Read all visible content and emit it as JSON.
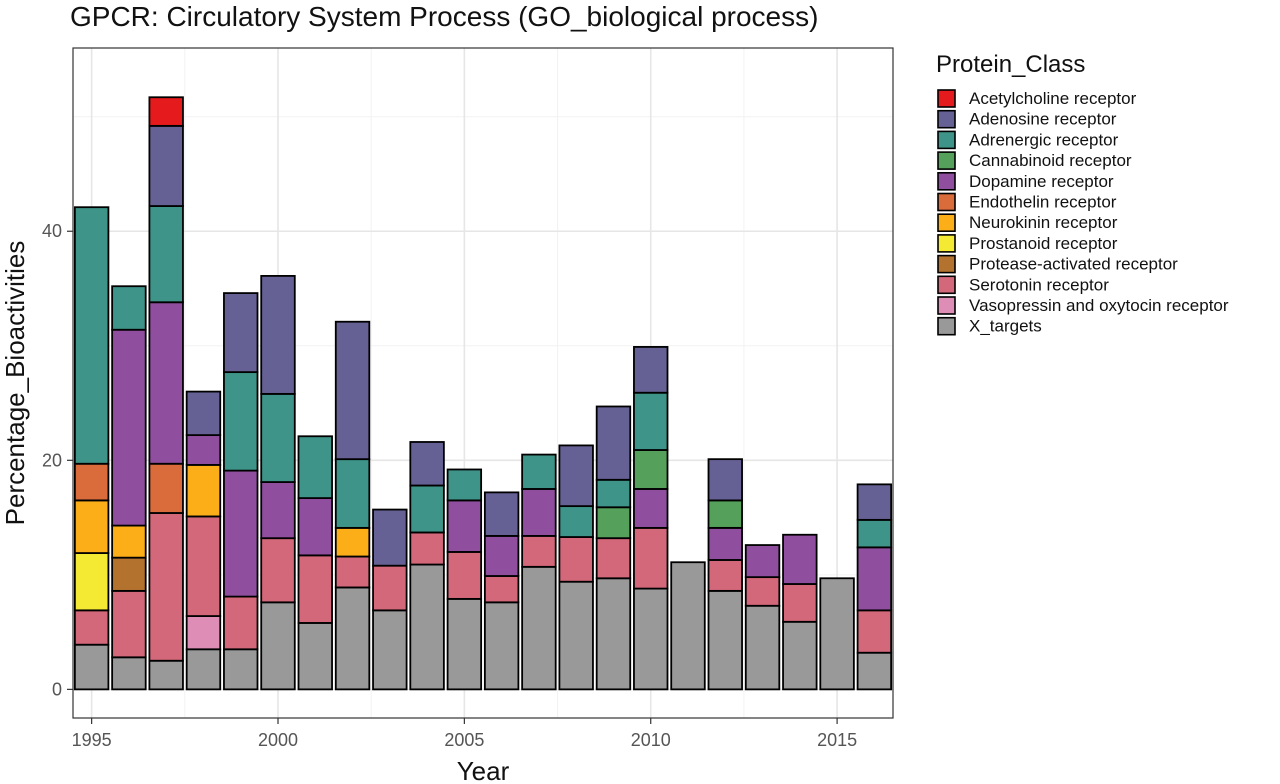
{
  "chart_data": {
    "type": "bar",
    "stacked": true,
    "title": "GPCR: Circulatory System Process (GO_biological process)",
    "xlabel": "Year",
    "ylabel": "Percentage_Bioactivities",
    "xlim": [
      1994.5,
      2016.5
    ],
    "ylim": [
      -2.5,
      56
    ],
    "x_ticks": [
      1995,
      2000,
      2005,
      2010,
      2015
    ],
    "y_ticks": [
      0,
      20,
      40
    ],
    "grid": true,
    "legend": {
      "title": "Protein_Class",
      "placement": "right"
    },
    "x": [
      1995,
      1996,
      1997,
      1998,
      1999,
      2000,
      2001,
      2002,
      2003,
      2004,
      2005,
      2006,
      2007,
      2008,
      2009,
      2010,
      2011,
      2012,
      2013,
      2014,
      2015,
      2016
    ],
    "series": [
      {
        "name": "Acetylcholine receptor",
        "color": "#e41a1c",
        "values": [
          0,
          0,
          2.5,
          0,
          0,
          0,
          0,
          0,
          0,
          0,
          0,
          0,
          0,
          0,
          0,
          0,
          0,
          0,
          0,
          0,
          0,
          0
        ]
      },
      {
        "name": "Adenosine receptor",
        "color": "#666194",
        "values": [
          0,
          0,
          7,
          3.8,
          6.9,
          10.3,
          0,
          12,
          4.9,
          3.8,
          0,
          3.8,
          0,
          5.3,
          6.4,
          4,
          0,
          3.6,
          0,
          0,
          0,
          3.1
        ]
      },
      {
        "name": "Adrenergic receptor",
        "color": "#3e9488",
        "values": [
          22.4,
          3.8,
          8.4,
          0,
          8.6,
          7.7,
          5.4,
          6,
          0,
          4.1,
          2.7,
          0,
          3,
          2.7,
          2.4,
          5,
          0,
          0,
          0,
          0,
          0,
          2.4
        ]
      },
      {
        "name": "Cannabinoid receptor",
        "color": "#55a05a",
        "values": [
          0,
          0,
          0,
          0,
          0,
          0,
          0,
          0,
          0,
          0,
          0,
          0,
          0,
          0,
          2.7,
          3.4,
          0,
          2.4,
          0,
          0,
          0,
          0
        ]
      },
      {
        "name": "Dopamine receptor",
        "color": "#8f4f9e",
        "values": [
          0,
          17.1,
          14.1,
          2.6,
          11,
          4.9,
          5,
          0,
          0,
          0,
          4.5,
          3.5,
          4.1,
          0,
          0,
          3.4,
          0,
          2.8,
          2.8,
          4.3,
          0,
          5.5
        ]
      },
      {
        "name": "Endothelin receptor",
        "color": "#da6b3b",
        "values": [
          3.2,
          0,
          4.3,
          0,
          0,
          0,
          0,
          0,
          0,
          0,
          0,
          0,
          0,
          0,
          0,
          0,
          0,
          0,
          0,
          0,
          0,
          0
        ]
      },
      {
        "name": "Neurokinin receptor",
        "color": "#fbae17",
        "values": [
          4.6,
          2.8,
          0,
          4.5,
          0,
          0,
          0,
          2.5,
          0,
          0,
          0,
          0,
          0,
          0,
          0,
          0,
          0,
          0,
          0,
          0,
          0,
          0
        ]
      },
      {
        "name": "Prostanoid receptor",
        "color": "#f5ea33",
        "values": [
          5,
          0,
          0,
          0,
          0,
          0,
          0,
          0,
          0,
          0,
          0,
          0,
          0,
          0,
          0,
          0,
          0,
          0,
          0,
          0,
          0,
          0
        ]
      },
      {
        "name": "Protease-activated receptor",
        "color": "#b3732e",
        "values": [
          0,
          2.9,
          0,
          0,
          0,
          0,
          0,
          0,
          0,
          0,
          0,
          0,
          0,
          0,
          0,
          0,
          0,
          0,
          0,
          0,
          0,
          0
        ]
      },
      {
        "name": "Serotonin receptor",
        "color": "#d3687a",
        "values": [
          3,
          5.8,
          12.9,
          8.7,
          4.6,
          5.6,
          5.9,
          2.7,
          3.9,
          2.8,
          4.1,
          2.3,
          2.7,
          3.9,
          3.5,
          5.3,
          0,
          2.7,
          2.5,
          3.3,
          0,
          3.7
        ]
      },
      {
        "name": "Vasopressin and oxytocin receptor",
        "color": "#de8db7",
        "values": [
          0,
          0,
          0,
          2.9,
          0,
          0,
          0,
          0,
          0,
          0,
          0,
          0,
          0,
          0,
          0,
          0,
          0,
          0,
          0,
          0,
          0,
          0
        ]
      },
      {
        "name": "X_targets",
        "color": "#999999",
        "values": [
          3.9,
          2.8,
          2.5,
          3.5,
          3.5,
          7.6,
          5.8,
          8.9,
          6.9,
          10.9,
          7.9,
          7.6,
          10.7,
          9.4,
          9.7,
          8.8,
          11.1,
          8.6,
          7.3,
          5.9,
          9.7,
          3.2
        ]
      }
    ]
  }
}
